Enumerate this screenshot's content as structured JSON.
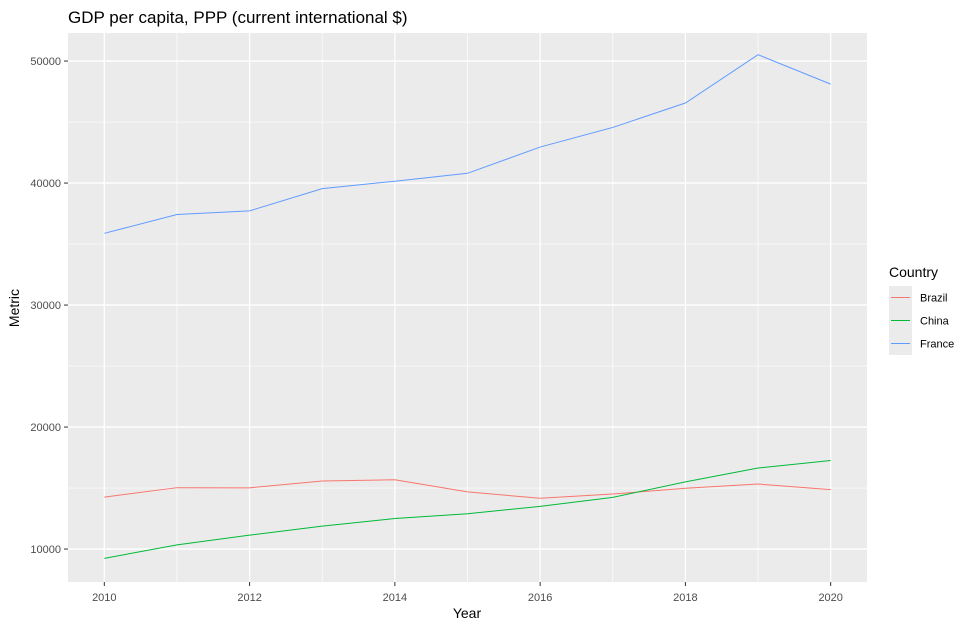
{
  "chart_data": {
    "type": "line",
    "title": "GDP per capita, PPP (current international $)",
    "xlabel": "Year",
    "ylabel": "Metric",
    "x": [
      2010,
      2011,
      2012,
      2013,
      2014,
      2015,
      2016,
      2017,
      2018,
      2019,
      2020
    ],
    "xlim": [
      2009.5,
      2020.5
    ],
    "ylim": [
      7300,
      52300
    ],
    "x_ticks": [
      2010,
      2012,
      2014,
      2016,
      2018,
      2020
    ],
    "y_ticks": [
      10000,
      20000,
      30000,
      40000,
      50000
    ],
    "grid": true,
    "background": "#EBEBEB",
    "legend": {
      "title": "Country",
      "placement": "right"
    },
    "series": [
      {
        "name": "Brazil",
        "color": "#F8766D",
        "values": [
          14260,
          15030,
          15020,
          15580,
          15680,
          14690,
          14160,
          14510,
          14980,
          15330,
          14870
        ]
      },
      {
        "name": "China",
        "color": "#00BA38",
        "values": [
          9240,
          10340,
          11140,
          11880,
          12500,
          12890,
          13500,
          14240,
          15510,
          16640,
          17260
        ]
      },
      {
        "name": "France",
        "color": "#619CFF",
        "values": [
          35880,
          37420,
          37720,
          39540,
          40150,
          40800,
          42950,
          44560,
          46560,
          50520,
          48110
        ]
      }
    ]
  }
}
